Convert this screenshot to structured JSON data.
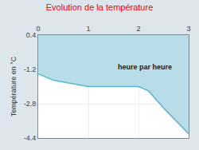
{
  "chart_data": {
    "type": "area",
    "title": "Evolution de la température",
    "title_color": "#ff0000",
    "ylabel": "Température en °C",
    "background_color": "#dde5ed",
    "plot_bg_color": "#ffffff",
    "x": [
      0,
      0.3,
      1.0,
      1.5,
      2.0,
      2.2,
      2.5,
      3.0
    ],
    "values": [
      -1.4,
      -1.7,
      -2.0,
      -2.0,
      -2.0,
      -2.2,
      -3.0,
      -4.2
    ],
    "color": "#5ab8cc",
    "fill_color": "#b8dce8",
    "fill_baseline": 0.4,
    "xlim": [
      0,
      3
    ],
    "ylim": [
      -4.4,
      0.4
    ],
    "xticks": [
      0,
      1,
      2,
      3
    ],
    "yticks": [
      0.4,
      -1.2,
      -2.8,
      -4.4
    ],
    "grid": true,
    "annotations": [
      {
        "text": "heure par heure",
        "x": 1.55,
        "y": -1.35
      }
    ]
  }
}
